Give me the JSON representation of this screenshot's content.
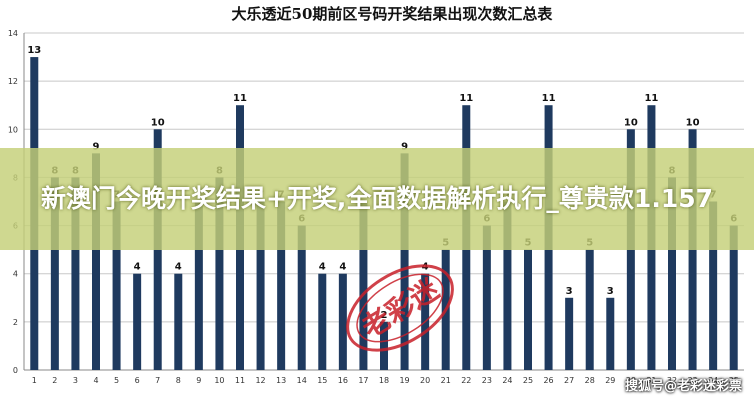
{
  "chart_data": {
    "type": "bar",
    "title": "大乐透近50期前区号码开奖结果出现次数汇总表",
    "xlabel": "",
    "ylabel": "",
    "ylim": [
      0,
      14
    ],
    "yticks": [
      0,
      2,
      4,
      6,
      8,
      10,
      12,
      14
    ],
    "grid": true,
    "legend": "none",
    "bar_color": "#1f3a5f",
    "categories": [
      "1",
      "2",
      "3",
      "4",
      "5",
      "6",
      "7",
      "8",
      "9",
      "10",
      "11",
      "12",
      "13",
      "14",
      "15",
      "16",
      "17",
      "18",
      "19",
      "20",
      "21",
      "22",
      "23",
      "24",
      "25",
      "26",
      "27",
      "28",
      "29",
      "30",
      "31",
      "32",
      "33",
      "34",
      "35"
    ],
    "values": [
      13,
      8,
      8,
      9,
      7,
      4,
      10,
      4,
      7,
      8,
      11,
      7,
      7,
      6,
      4,
      4,
      7,
      2,
      9,
      4,
      5,
      11,
      6,
      7,
      5,
      11,
      3,
      5,
      3,
      10,
      11,
      8,
      10,
      7,
      6
    ]
  },
  "overlay": {
    "banner_text": "新澳门今晚开奖结果+开奖,全面数据解析执行_尊贵款1.157",
    "stamp_text": "老彩迷",
    "watermark_text": "搜狐号@老彩迷彩票"
  }
}
